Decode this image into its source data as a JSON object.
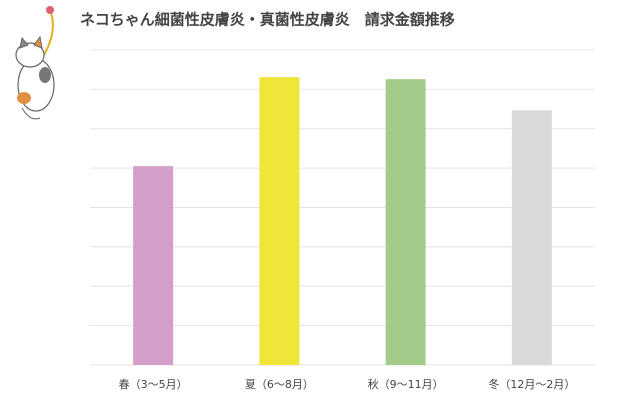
{
  "chart_data": {
    "type": "bar",
    "title": "ネコちゃん細菌性皮膚炎・真菌性皮膚炎　請求金額推移",
    "categories": [
      "春（3〜5月）",
      "夏（6〜8月）",
      "秋（9〜11月）",
      "冬（12月〜2月）"
    ],
    "values": [
      5.05,
      7.31,
      7.26,
      6.47
    ],
    "colors": [
      "#d39ec8",
      "#f0e63a",
      "#a3cc8a",
      "#d9d9d9"
    ],
    "ylim": [
      0,
      8
    ],
    "yticks": [
      0,
      1,
      2,
      3,
      4,
      5,
      6,
      7,
      8
    ],
    "grid": true
  }
}
